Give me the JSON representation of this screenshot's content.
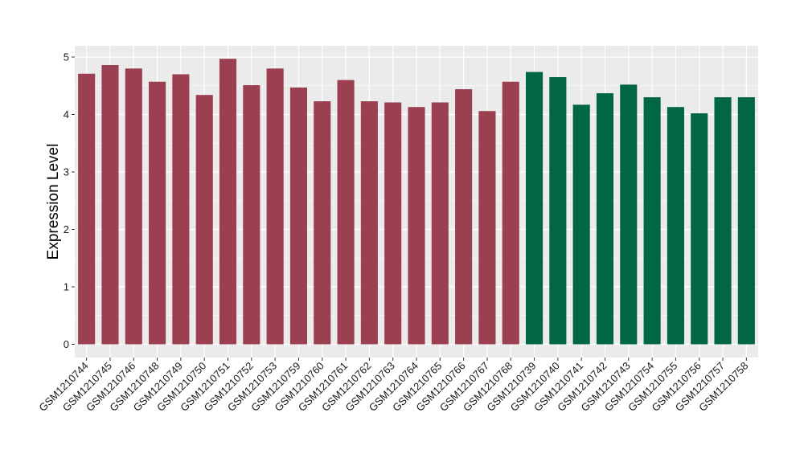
{
  "chart_data": {
    "type": "bar",
    "title": "",
    "xlabel": "",
    "ylabel": "Expression Level",
    "ylim": [
      0,
      5.2
    ],
    "yticks": [
      0,
      1,
      2,
      3,
      4,
      5
    ],
    "grid": true,
    "legend": "none",
    "colors": {
      "group1": "#9a4050",
      "group2": "#006644",
      "panel": "#ebebeb",
      "grid": "#ffffff"
    },
    "categories": [
      "GSM1210744",
      "GSM1210745",
      "GSM1210746",
      "GSM1210748",
      "GSM1210749",
      "GSM1210750",
      "GSM1210751",
      "GSM1210752",
      "GSM1210753",
      "GSM1210759",
      "GSM1210760",
      "GSM1210761",
      "GSM1210762",
      "GSM1210763",
      "GSM1210764",
      "GSM1210765",
      "GSM1210766",
      "GSM1210767",
      "GSM1210768",
      "GSM1210739",
      "GSM1210740",
      "GSM1210741",
      "GSM1210742",
      "GSM1210743",
      "GSM1210754",
      "GSM1210755",
      "GSM1210756",
      "GSM1210757",
      "GSM1210758"
    ],
    "values": [
      4.71,
      4.86,
      4.8,
      4.57,
      4.7,
      4.34,
      4.97,
      4.51,
      4.8,
      4.47,
      4.23,
      4.6,
      4.23,
      4.21,
      4.13,
      4.21,
      4.44,
      4.06,
      4.57,
      4.74,
      4.65,
      4.17,
      4.37,
      4.52,
      4.3,
      4.13,
      4.02,
      4.3,
      4.3
    ],
    "groups": [
      1,
      1,
      1,
      1,
      1,
      1,
      1,
      1,
      1,
      1,
      1,
      1,
      1,
      1,
      1,
      1,
      1,
      1,
      1,
      2,
      2,
      2,
      2,
      2,
      2,
      2,
      2,
      2,
      2
    ]
  }
}
